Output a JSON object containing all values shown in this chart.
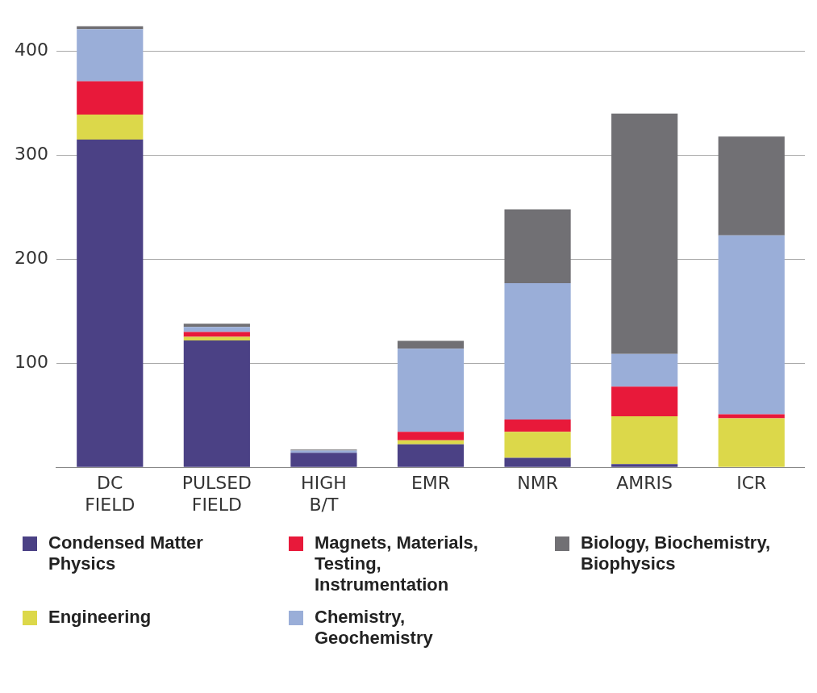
{
  "chart_data": {
    "type": "bar",
    "stacked": true,
    "categories": [
      "DC FIELD",
      "PULSED FIELD",
      "HIGH B/T",
      "EMR",
      "NMR",
      "AMRIS",
      "ICR"
    ],
    "series": [
      {
        "name": "Condensed Matter Physics",
        "color": "#4b4185",
        "values": [
          315,
          122,
          14,
          22,
          9,
          3,
          0
        ]
      },
      {
        "name": "Engineering",
        "color": "#dcd84a",
        "values": [
          24,
          3.5,
          0,
          4,
          25,
          46,
          47
        ]
      },
      {
        "name": "Magnets, Materials, Testing, Instrumentation",
        "color": "#e8193a",
        "values": [
          32,
          4.5,
          0,
          8,
          12,
          28.5,
          4
        ]
      },
      {
        "name": "Chemistry, Geochemistry",
        "color": "#9aaed8",
        "values": [
          50,
          5,
          2,
          80,
          131,
          31.5,
          172
        ]
      },
      {
        "name": "Biology, Biochemistry, Biophysics",
        "color": "#717074",
        "values": [
          3,
          3,
          1,
          7.5,
          71,
          231,
          95
        ]
      }
    ],
    "ylim": [
      0,
      425
    ],
    "yticks": [
      {
        "value": 0,
        "label": null
      },
      100,
      200,
      300,
      400
    ],
    "grid": "y",
    "legend": "bottom"
  }
}
